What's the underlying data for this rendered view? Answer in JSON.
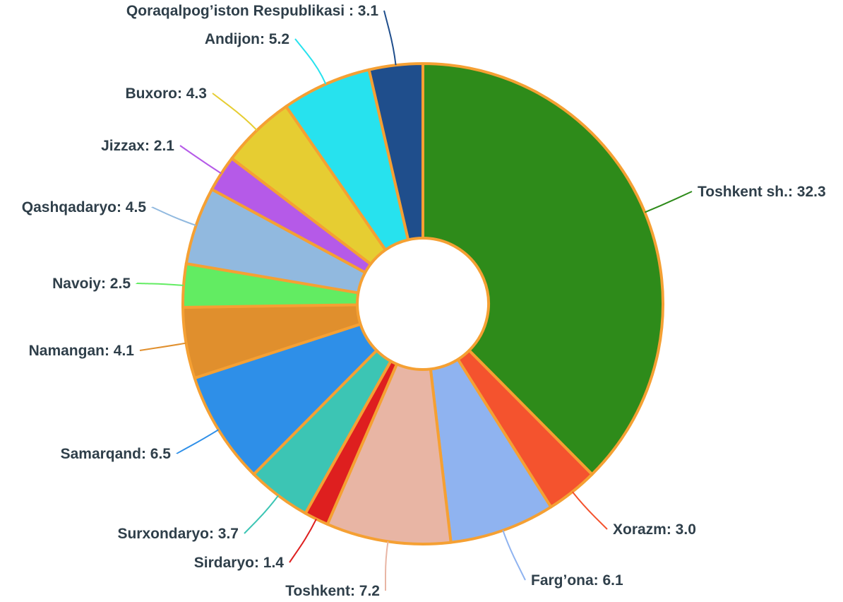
{
  "chart_data": {
    "type": "pie",
    "variant": "donut",
    "title": "",
    "slice_border_color": "#f5a033",
    "slices": [
      {
        "label": "Toshkent sh.",
        "value": 32.3,
        "display": "Toshkent sh.: 32.3",
        "color": "#2e8b1a"
      },
      {
        "label": "Xorazm",
        "value": 3.0,
        "display": "Xorazm: 3.0",
        "color": "#f4532e"
      },
      {
        "label": "Farg’ona",
        "value": 6.1,
        "display": "Farg’ona: 6.1",
        "color": "#8fb3f0"
      },
      {
        "label": "Toshkent",
        "value": 7.2,
        "display": "Toshkent: 7.2",
        "color": "#e8b5a4"
      },
      {
        "label": "Sirdaryo",
        "value": 1.4,
        "display": "Sirdaryo: 1.4",
        "color": "#de1f1f"
      },
      {
        "label": "Surxondaryo",
        "value": 3.7,
        "display": "Surxondaryo: 3.7",
        "color": "#3cc5b4"
      },
      {
        "label": "Samarqand",
        "value": 6.5,
        "display": "Samarqand: 6.5",
        "color": "#2e8fe8"
      },
      {
        "label": "Namangan",
        "value": 4.1,
        "display": "Namangan: 4.1",
        "color": "#e08f2d"
      },
      {
        "label": "Navoiy",
        "value": 2.5,
        "display": "Navoiy: 2.5",
        "color": "#62ec62"
      },
      {
        "label": "Qashqadaryo",
        "value": 4.5,
        "display": "Qashqadaryo: 4.5",
        "color": "#91b9df"
      },
      {
        "label": "Jizzax",
        "value": 2.1,
        "display": "Jizzax: 2.1",
        "color": "#b55ae8"
      },
      {
        "label": "Buxoro",
        "value": 4.3,
        "display": "Buxoro: 4.3",
        "color": "#e6cd32"
      },
      {
        "label": "Andijon",
        "value": 5.2,
        "display": "Andijon: 5.2",
        "color": "#27e2ee"
      },
      {
        "label": "Qoraqalpog’iston Respublikasi",
        "value": 3.1,
        "display": "Qoraqalpog’iston Respublikasi : 3.1",
        "color": "#1f4e8c"
      }
    ]
  }
}
